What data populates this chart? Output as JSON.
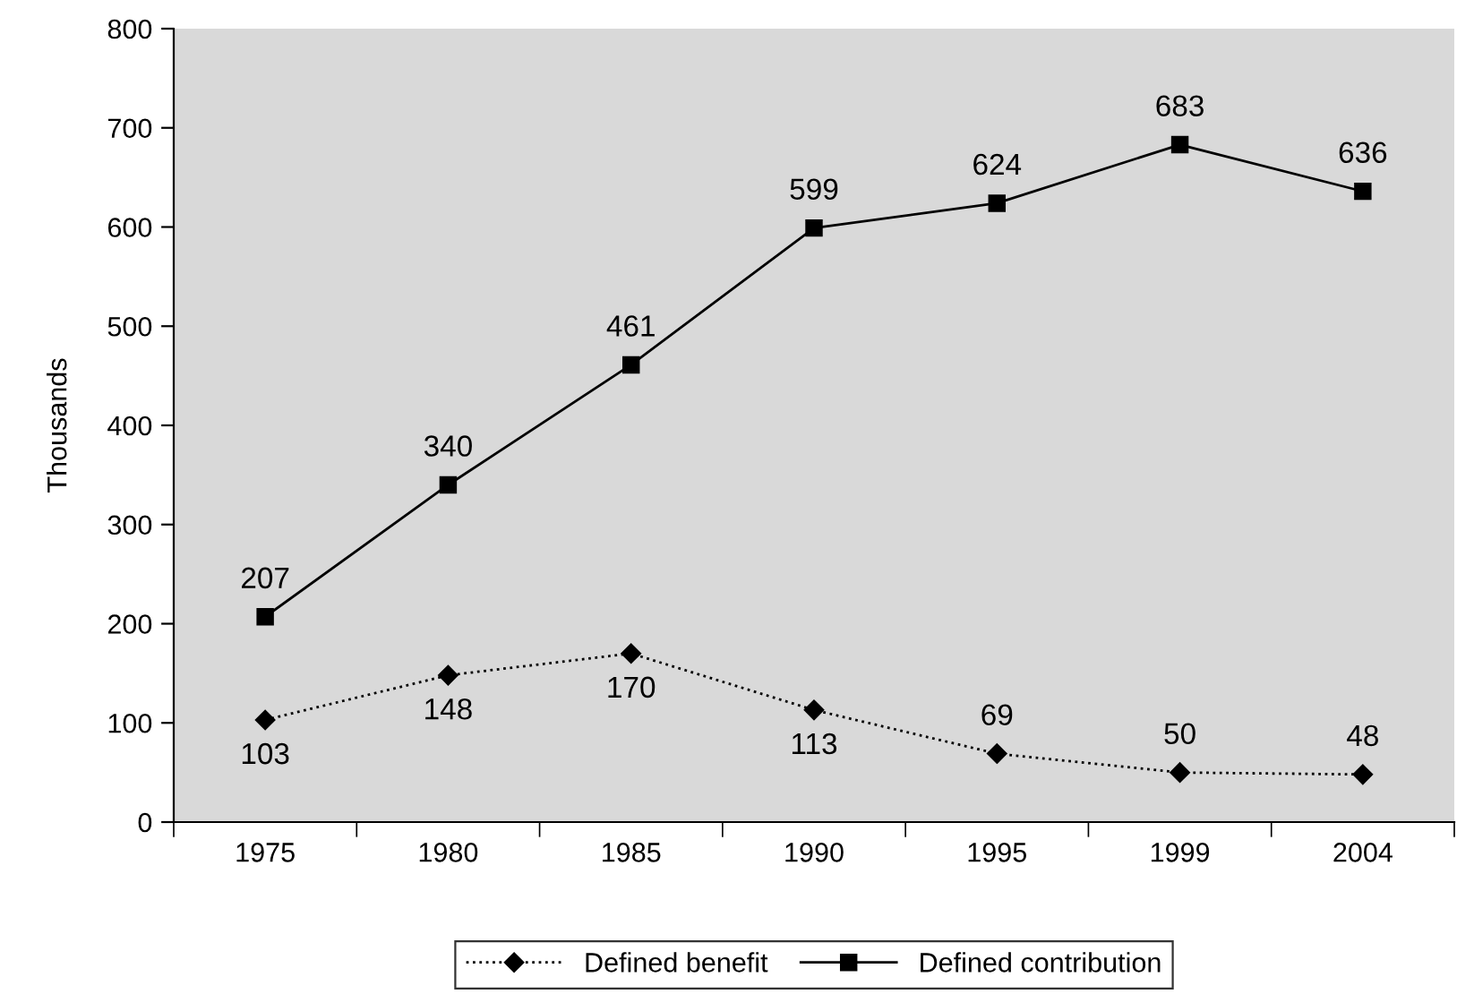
{
  "chart_data": {
    "type": "line",
    "ylabel": "Thousands",
    "categories": [
      "1975",
      "1980",
      "1985",
      "1990",
      "1995",
      "1999",
      "2004"
    ],
    "series": [
      {
        "name": "Defined benefit",
        "color": "#000000",
        "marker": "diamond",
        "line_style": "dotted",
        "values": [
          103,
          148,
          170,
          113,
          69,
          50,
          48
        ]
      },
      {
        "name": "Defined contribution",
        "color": "#000000",
        "marker": "square",
        "line_style": "solid",
        "values": [
          207,
          340,
          461,
          599,
          624,
          683,
          636
        ]
      }
    ],
    "ylim": [
      0,
      800
    ],
    "yticks": [
      0,
      100,
      200,
      300,
      400,
      500,
      600,
      700,
      800
    ],
    "grid": false,
    "legend": "bottom",
    "data_labels": true
  }
}
